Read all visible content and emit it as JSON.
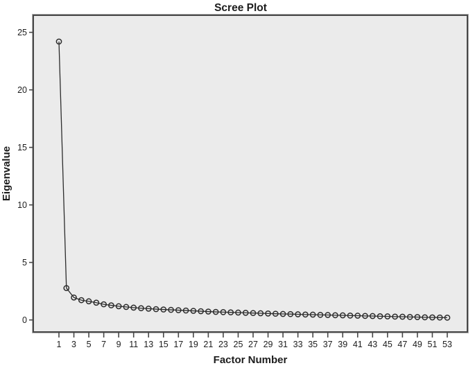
{
  "chart_data": {
    "type": "line",
    "title": "Scree Plot",
    "xlabel": "Factor Number",
    "ylabel": "Eigenvalue",
    "x": [
      1,
      2,
      3,
      4,
      5,
      6,
      7,
      8,
      9,
      10,
      11,
      12,
      13,
      14,
      15,
      16,
      17,
      18,
      19,
      20,
      21,
      22,
      23,
      24,
      25,
      26,
      27,
      28,
      29,
      30,
      31,
      32,
      33,
      34,
      35,
      36,
      37,
      38,
      39,
      40,
      41,
      42,
      43,
      44,
      45,
      46,
      47,
      48,
      49,
      50,
      51,
      52,
      53
    ],
    "values": [
      24.2,
      2.77,
      1.95,
      1.72,
      1.62,
      1.5,
      1.36,
      1.27,
      1.19,
      1.13,
      1.07,
      1.02,
      0.98,
      0.94,
      0.91,
      0.88,
      0.85,
      0.82,
      0.79,
      0.76,
      0.73,
      0.7,
      0.68,
      0.66,
      0.64,
      0.62,
      0.6,
      0.58,
      0.56,
      0.54,
      0.52,
      0.51,
      0.49,
      0.47,
      0.46,
      0.44,
      0.43,
      0.41,
      0.4,
      0.38,
      0.37,
      0.35,
      0.34,
      0.32,
      0.31,
      0.29,
      0.28,
      0.26,
      0.25,
      0.23,
      0.22,
      0.21,
      0.2
    ],
    "y_ticks": [
      0,
      5,
      10,
      15,
      20,
      25
    ],
    "x_tick_labels": [
      1,
      3,
      5,
      7,
      9,
      11,
      13,
      15,
      17,
      19,
      21,
      23,
      25,
      27,
      29,
      31,
      33,
      35,
      37,
      39,
      41,
      43,
      45,
      47,
      49,
      51,
      53
    ],
    "ylim": [
      0,
      25
    ],
    "grid": false,
    "legend": null,
    "marker": "open-circle",
    "colors": {
      "line": "#2b2b2b",
      "marker_stroke": "#2b2b2b",
      "plot_background": "#ebebeb",
      "frame": "#474747",
      "frame_outer": "#b4b4b4",
      "text": "#1c1c1c",
      "page_background": "#ffffff"
    }
  }
}
